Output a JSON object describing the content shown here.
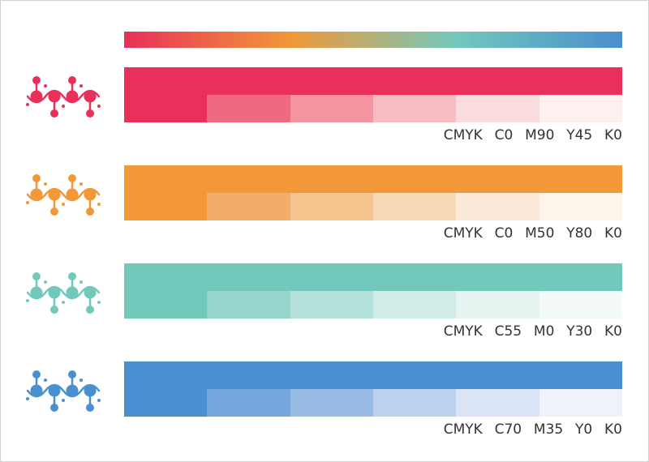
{
  "gradient_bar": {
    "colors": [
      "#e8305a",
      "#f29838",
      "#72c8bb",
      "#4a8fcf"
    ]
  },
  "palettes": [
    {
      "id": "red",
      "color": "#e8305a",
      "swatches": [
        "#e8305a",
        "#ee6a7e",
        "#f3949f",
        "#f7bcc1",
        "#fadcdd",
        "#fdf0ef"
      ],
      "cmyk_label": "CMYK  C0  M90  Y45  K0",
      "icon": "molecule-icon"
    },
    {
      "id": "orange",
      "color": "#f29838",
      "swatches": [
        "#f29838",
        "#f4ad68",
        "#f7c48f",
        "#f9d8b5",
        "#fce9d8",
        "#fdf5ec"
      ],
      "cmyk_label": "CMYK  C0  M50  Y80  K0",
      "icon": "molecule-icon"
    },
    {
      "id": "teal",
      "color": "#72c8bb",
      "swatches": [
        "#72c8bb",
        "#96d5cb",
        "#b3e0d9",
        "#d0ece7",
        "#e5f4f1",
        "#f3faf8"
      ],
      "cmyk_label": "CMYK  C55  M0  Y30  K0",
      "icon": "molecule-icon"
    },
    {
      "id": "blue",
      "color": "#4a8fcf",
      "swatches": [
        "#4a8fcf",
        "#76a7dc",
        "#99bce5",
        "#bcd1ee",
        "#dae4f6",
        "#eef2fb"
      ],
      "cmyk_label": "CMYK  C70  M35  Y0  K0",
      "icon": "molecule-icon"
    }
  ]
}
